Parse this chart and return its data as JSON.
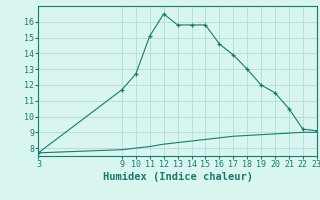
{
  "x_humidex": [
    3,
    9,
    10,
    11,
    12,
    13,
    14,
    15,
    16,
    17,
    18,
    19,
    20,
    21,
    22,
    23
  ],
  "y_humidex": [
    7.7,
    11.7,
    12.7,
    15.1,
    16.5,
    15.8,
    15.8,
    15.8,
    14.6,
    13.9,
    13.0,
    12.0,
    11.5,
    10.5,
    9.2,
    9.1
  ],
  "x_base": [
    3,
    9,
    10,
    11,
    12,
    13,
    14,
    15,
    16,
    17,
    18,
    19,
    20,
    21,
    22,
    23
  ],
  "y_base": [
    7.7,
    7.9,
    8.0,
    8.1,
    8.25,
    8.35,
    8.45,
    8.55,
    8.65,
    8.75,
    8.8,
    8.85,
    8.9,
    8.95,
    9.0,
    9.0
  ],
  "line_color": "#1a7a6e",
  "bg_color": "#d8f5ef",
  "grid_color": "#b0ddd5",
  "xlabel": "Humidex (Indice chaleur)",
  "ylim": [
    7.5,
    17.0
  ],
  "xlim": [
    3,
    23
  ],
  "yticks": [
    8,
    9,
    10,
    11,
    12,
    13,
    14,
    15,
    16
  ],
  "xticks": [
    3,
    9,
    10,
    11,
    12,
    13,
    14,
    15,
    16,
    17,
    18,
    19,
    20,
    21,
    22,
    23
  ],
  "tick_fontsize": 6.0,
  "xlabel_fontsize": 7.5
}
